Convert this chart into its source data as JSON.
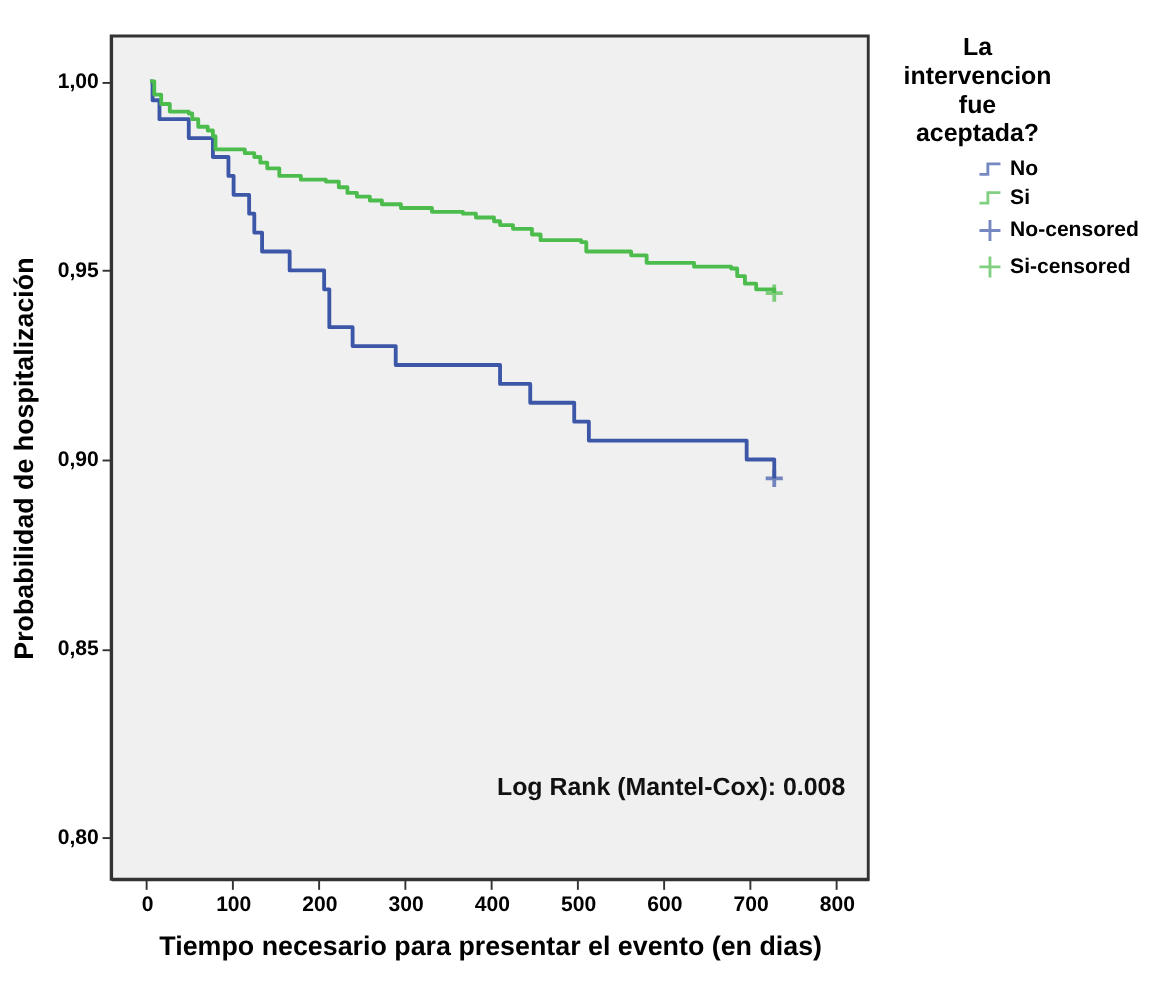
{
  "chart_data": {
    "type": "step",
    "xlabel": "Tiempo necesario para presentar el evento (en dias)",
    "ylabel": "Probabilidad de hospitalización",
    "legend_title": "La intervencion fue aceptada?",
    "legend": "right",
    "grid": false,
    "xlim": [
      -41,
      837
    ],
    "xticks": [
      0,
      100,
      200,
      300,
      400,
      500,
      600,
      700,
      800
    ],
    "ylim": [
      0.789,
      1.012
    ],
    "yticks": [
      {
        "value": 0.8,
        "label": "0,80"
      },
      {
        "value": 0.85,
        "label": "0,85"
      },
      {
        "value": 0.9,
        "label": "0,90"
      },
      {
        "value": 0.95,
        "label": "0,95"
      },
      {
        "value": 1.0,
        "label": "1,00"
      }
    ],
    "annotations": [
      "Log Rank (Mantel-Cox): 0.008"
    ],
    "series": [
      {
        "name": "No",
        "color": "#3d57a8",
        "x": [
          4,
          7,
          15,
          49,
          77,
          95,
          101,
          119,
          125,
          134,
          166,
          206,
          212,
          239,
          289,
          410,
          445,
          496,
          513,
          696,
          728
        ],
        "values": [
          1.0,
          0.995,
          0.99,
          0.985,
          0.98,
          0.975,
          0.97,
          0.965,
          0.96,
          0.955,
          0.95,
          0.945,
          0.935,
          0.93,
          0.925,
          0.92,
          0.915,
          0.91,
          0.905,
          0.9,
          0.895
        ]
      },
      {
        "name": "Si",
        "color": "#4cbd4c",
        "x": [
          4,
          9,
          17,
          27,
          49,
          53,
          60,
          71,
          77,
          80,
          114,
          125,
          132,
          140,
          154,
          179,
          208,
          223,
          233,
          244,
          259,
          273,
          295,
          331,
          367,
          382,
          403,
          410,
          425,
          447,
          457,
          504,
          510,
          562,
          580,
          635,
          678,
          685,
          694,
          707,
          728
        ],
        "values": [
          1.0,
          0.9965,
          0.994,
          0.992,
          0.9915,
          0.99,
          0.988,
          0.987,
          0.9855,
          0.982,
          0.981,
          0.98,
          0.9785,
          0.977,
          0.975,
          0.974,
          0.9735,
          0.972,
          0.9705,
          0.9695,
          0.9685,
          0.9675,
          0.9665,
          0.9655,
          0.965,
          0.964,
          0.963,
          0.962,
          0.961,
          0.9595,
          0.958,
          0.9575,
          0.955,
          0.954,
          0.952,
          0.951,
          0.9505,
          0.9485,
          0.9465,
          0.945,
          0.944
        ]
      },
      {
        "name": "No-censored",
        "type": "scatter",
        "marker": "cross",
        "color": "#3d57a8",
        "x": [
          728
        ],
        "values": [
          0.895
        ]
      },
      {
        "name": "Si-censored",
        "type": "scatter",
        "marker": "cross",
        "color": "#4cbd4c",
        "x": [
          728
        ],
        "values": [
          0.944
        ]
      }
    ]
  }
}
